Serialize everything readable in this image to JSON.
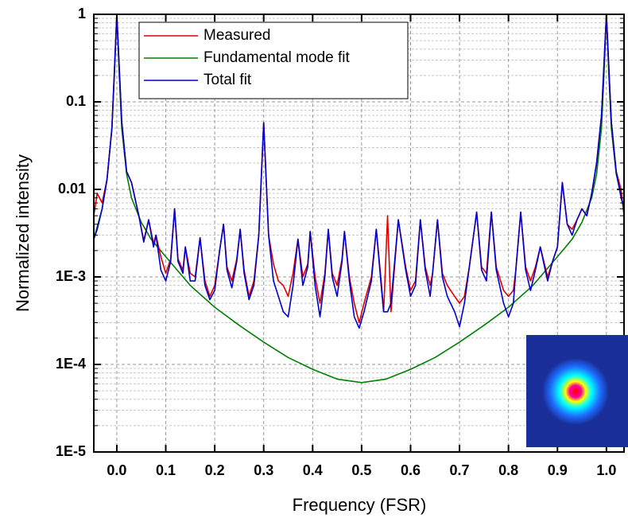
{
  "chart_data": {
    "type": "line",
    "x_label": "Frequency (FSR)",
    "y_label": "Normalized intensity",
    "log_y": true,
    "grid": true,
    "legend": "top-left",
    "xlim": [
      -0.047,
      1.036
    ],
    "ylim": [
      1e-05,
      1
    ],
    "xticks": [
      {
        "value": 0,
        "label": "0.0"
      },
      0.1,
      0.2,
      0.3,
      0.4,
      0.5,
      0.6,
      0.7,
      0.8,
      0.9,
      {
        "value": 1,
        "label": "1.0"
      }
    ],
    "yticks": [
      {
        "value": 1e-05,
        "label": "1E-5"
      },
      {
        "value": 0.0001,
        "label": "1E-4"
      },
      {
        "value": 0.001,
        "label": "1E-3"
      },
      0.01,
      0.1,
      1
    ],
    "series": [
      {
        "name": "Measured",
        "color": "#e00000",
        "x": [
          -0.047,
          -0.04,
          -0.03,
          -0.02,
          -0.01,
          0,
          0.01,
          0.02,
          0.03,
          0.045,
          0.055,
          0.065,
          0.075,
          0.08,
          0.09,
          0.1,
          0.11,
          0.118,
          0.125,
          0.135,
          0.14,
          0.15,
          0.16,
          0.17,
          0.18,
          0.19,
          0.2,
          0.21,
          0.218,
          0.225,
          0.235,
          0.245,
          0.252,
          0.26,
          0.27,
          0.28,
          0.29,
          0.3,
          0.31,
          0.32,
          0.33,
          0.34,
          0.35,
          0.36,
          0.37,
          0.38,
          0.39,
          0.395,
          0.405,
          0.415,
          0.425,
          0.432,
          0.44,
          0.45,
          0.46,
          0.465,
          0.475,
          0.485,
          0.495,
          0.505,
          0.52,
          0.53,
          0.54,
          0.545,
          0.553,
          0.56,
          0.575,
          0.59,
          0.6,
          0.61,
          0.62,
          0.63,
          0.64,
          0.645,
          0.655,
          0.665,
          0.675,
          0.69,
          0.7,
          0.71,
          0.72,
          0.735,
          0.745,
          0.755,
          0.765,
          0.775,
          0.79,
          0.8,
          0.81,
          0.815,
          0.825,
          0.835,
          0.845,
          0.855,
          0.865,
          0.875,
          0.88,
          0.89,
          0.9,
          0.91,
          0.92,
          0.93,
          0.94,
          0.95,
          0.96,
          0.97,
          0.98,
          0.99,
          1,
          1.01,
          1.02,
          1.03,
          1.036
        ],
        "values": [
          0.005,
          0.009,
          0.007,
          0.013,
          0.05,
          1,
          0.06,
          0.016,
          0.012,
          0.005,
          0.0026,
          0.0045,
          0.0024,
          0.003,
          0.0017,
          0.0011,
          0.0016,
          0.006,
          0.0016,
          0.0012,
          0.0022,
          0.0011,
          0.001,
          0.0028,
          0.0009,
          0.0006,
          0.0008,
          0.002,
          0.004,
          0.0013,
          0.0009,
          0.0016,
          0.0035,
          0.0012,
          0.0006,
          0.0009,
          0.003,
          0.058,
          0.003,
          0.0014,
          0.0009,
          0.0008,
          0.0006,
          0.0011,
          0.0027,
          0.001,
          0.0014,
          0.0033,
          0.001,
          0.0005,
          0.0011,
          0.0035,
          0.0011,
          0.0008,
          0.0016,
          0.0033,
          0.001,
          0.0005,
          0.0003,
          0.0005,
          0.001,
          0.0035,
          0.0009,
          0.0004,
          0.005,
          0.0004,
          0.0045,
          0.0013,
          0.0007,
          0.0009,
          0.0045,
          0.0013,
          0.0008,
          0.0011,
          0.0045,
          0.0011,
          0.0008,
          0.0006,
          0.0005,
          0.0006,
          0.0013,
          0.0055,
          0.0013,
          0.0011,
          0.0055,
          0.0013,
          0.0007,
          0.0006,
          0.0007,
          0.0012,
          0.0055,
          0.0013,
          0.0009,
          0.0013,
          0.0022,
          0.0013,
          0.001,
          0.0015,
          0.0022,
          0.012,
          0.004,
          0.0035,
          0.0045,
          0.006,
          0.005,
          0.009,
          0.02,
          0.07,
          1,
          0.06,
          0.016,
          0.01,
          0.005
        ]
      },
      {
        "name": "Fundamental mode fit",
        "color": "#008000",
        "x": [
          -0.047,
          -0.03,
          -0.02,
          -0.01,
          -0.005,
          0,
          0.005,
          0.01,
          0.02,
          0.03,
          0.05,
          0.07,
          0.1,
          0.15,
          0.2,
          0.25,
          0.3,
          0.35,
          0.4,
          0.45,
          0.5,
          0.55,
          0.6,
          0.65,
          0.7,
          0.75,
          0.8,
          0.85,
          0.9,
          0.93,
          0.95,
          0.97,
          0.98,
          0.99,
          0.995,
          1,
          1.005,
          1.01,
          1.02,
          1.036
        ],
        "values": [
          0.0027,
          0.006,
          0.013,
          0.05,
          0.2,
          1,
          0.2,
          0.05,
          0.015,
          0.008,
          0.0042,
          0.0027,
          0.0017,
          0.0008,
          0.00045,
          0.00028,
          0.00018,
          0.00012,
          8.8e-05,
          6.8e-05,
          6.2e-05,
          6.8e-05,
          8.8e-05,
          0.00012,
          0.00018,
          0.00028,
          0.00045,
          0.0008,
          0.0017,
          0.0027,
          0.0042,
          0.008,
          0.015,
          0.05,
          0.2,
          1,
          0.2,
          0.05,
          0.015,
          0.006
        ]
      },
      {
        "name": "Total fit",
        "color": "#0000cc",
        "x": [
          -0.047,
          -0.04,
          -0.03,
          -0.02,
          -0.01,
          0,
          0.01,
          0.02,
          0.03,
          0.045,
          0.055,
          0.065,
          0.075,
          0.08,
          0.09,
          0.1,
          0.11,
          0.118,
          0.125,
          0.135,
          0.14,
          0.15,
          0.16,
          0.17,
          0.18,
          0.19,
          0.2,
          0.21,
          0.218,
          0.225,
          0.235,
          0.245,
          0.252,
          0.26,
          0.27,
          0.28,
          0.29,
          0.3,
          0.31,
          0.32,
          0.33,
          0.34,
          0.35,
          0.36,
          0.37,
          0.38,
          0.39,
          0.395,
          0.405,
          0.415,
          0.425,
          0.432,
          0.44,
          0.45,
          0.46,
          0.465,
          0.475,
          0.485,
          0.495,
          0.505,
          0.52,
          0.53,
          0.54,
          0.545,
          0.553,
          0.56,
          0.575,
          0.59,
          0.6,
          0.61,
          0.62,
          0.63,
          0.64,
          0.645,
          0.655,
          0.665,
          0.675,
          0.69,
          0.7,
          0.71,
          0.72,
          0.735,
          0.745,
          0.755,
          0.765,
          0.775,
          0.79,
          0.8,
          0.81,
          0.815,
          0.825,
          0.835,
          0.845,
          0.855,
          0.865,
          0.875,
          0.88,
          0.89,
          0.9,
          0.91,
          0.92,
          0.93,
          0.94,
          0.95,
          0.96,
          0.97,
          0.98,
          0.99,
          1,
          1.01,
          1.02,
          1.03,
          1.036
        ],
        "values": [
          0.0027,
          0.0035,
          0.006,
          0.013,
          0.05,
          1,
          0.06,
          0.016,
          0.012,
          0.005,
          0.0025,
          0.0045,
          0.0022,
          0.003,
          0.0012,
          0.0009,
          0.0015,
          0.006,
          0.0015,
          0.0011,
          0.0022,
          0.0009,
          0.0009,
          0.0028,
          0.0008,
          0.00055,
          0.0007,
          0.002,
          0.004,
          0.0012,
          0.00075,
          0.0015,
          0.0035,
          0.0011,
          0.00055,
          0.0008,
          0.003,
          0.058,
          0.003,
          0.0009,
          0.0006,
          0.0004,
          0.00035,
          0.0008,
          0.0027,
          0.0008,
          0.0013,
          0.0033,
          0.0008,
          0.00035,
          0.001,
          0.0035,
          0.001,
          0.0006,
          0.0015,
          0.0033,
          0.0009,
          0.00035,
          0.00026,
          0.0004,
          0.0009,
          0.0035,
          0.0008,
          0.0004,
          0.0004,
          0.0005,
          0.0045,
          0.0012,
          0.0006,
          0.0008,
          0.0045,
          0.0012,
          0.0006,
          0.0011,
          0.0045,
          0.001,
          0.0006,
          0.0004,
          0.00027,
          0.0005,
          0.0013,
          0.0055,
          0.0012,
          0.0009,
          0.0055,
          0.0012,
          0.0005,
          0.00035,
          0.0005,
          0.0012,
          0.0055,
          0.0012,
          0.0007,
          0.0012,
          0.0022,
          0.0012,
          0.0009,
          0.0015,
          0.0022,
          0.012,
          0.004,
          0.003,
          0.0045,
          0.006,
          0.005,
          0.009,
          0.02,
          0.07,
          1,
          0.06,
          0.016,
          0.008,
          0.006
        ]
      }
    ]
  }
}
